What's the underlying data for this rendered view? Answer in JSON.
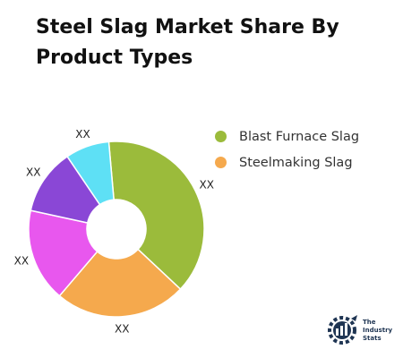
{
  "title": "Steel Slag Market Share By Product Types",
  "chart_data": {
    "type": "pie",
    "donut": true,
    "title": "Steel Slag Market Share By Product Types",
    "series": [
      {
        "name": "Blast Furnace Slag",
        "value": 38,
        "label": "XX",
        "color": "#9bbb3b",
        "in_legend": true
      },
      {
        "name": "Steelmaking Slag",
        "value": 24,
        "label": "XX",
        "color": "#f5a94d",
        "in_legend": true
      },
      {
        "name": "",
        "value": 17,
        "label": "XX",
        "color": "#e857ee",
        "in_legend": false
      },
      {
        "name": "",
        "value": 12,
        "label": "XX",
        "color": "#8a47d6",
        "in_legend": false
      },
      {
        "name": "",
        "value": 8,
        "label": "XX",
        "color": "#5ee0f5",
        "in_legend": false
      }
    ],
    "legend_position": "right"
  },
  "logo": {
    "line1": "The",
    "line2": "Industry",
    "line3": "Stats"
  }
}
